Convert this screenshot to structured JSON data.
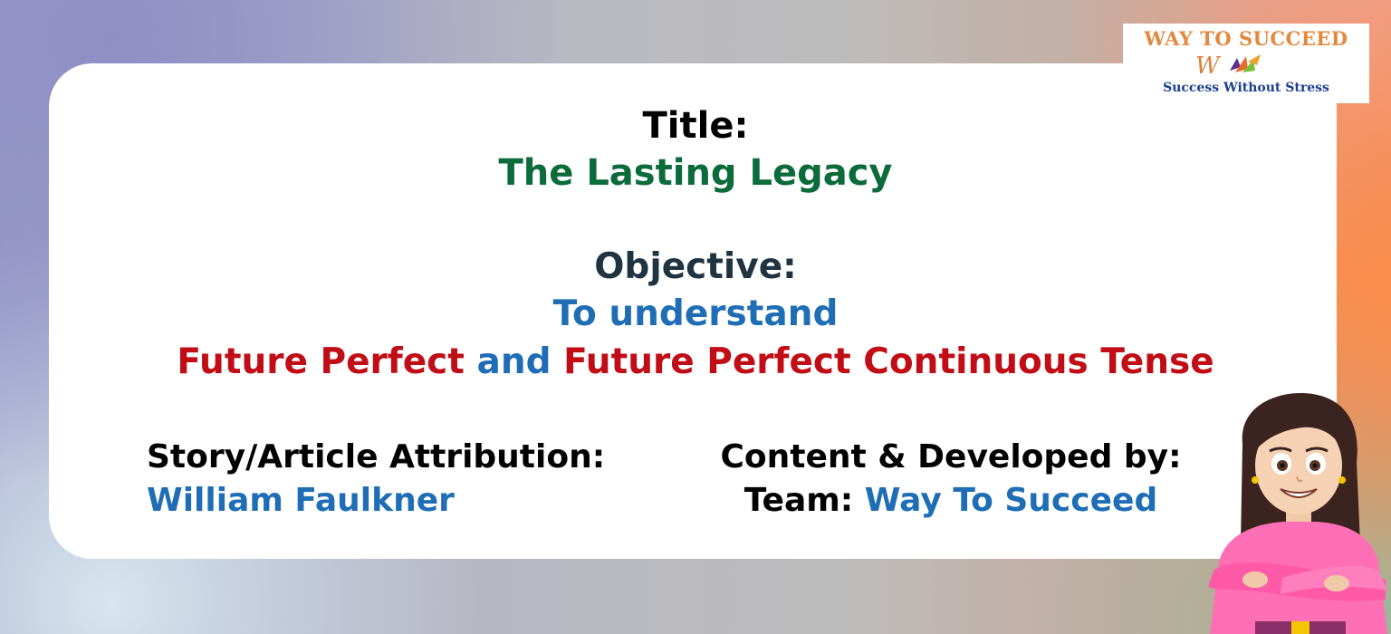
{
  "title": {
    "label": "Title:",
    "value": "The Lasting Legacy"
  },
  "objective": {
    "label": "Objective:",
    "value": "To understand",
    "tense_part1": "Future Perfect",
    "tense_and": " and ",
    "tense_part2": "Future Perfect Continuous Tense"
  },
  "attribution": {
    "label": "Story/Article Attribution:",
    "value": "William Faulkner"
  },
  "developed": {
    "label": "Content & Developed by:",
    "team_prefix": "Team: ",
    "team_name": "Way To Succeed"
  },
  "logo": {
    "top_text": "WAY TO SUCCEED",
    "bottom_text": "Success Without Stress",
    "mark_letter": "W"
  },
  "icons": {
    "logo_mark": "logo-arrow-mark-icon",
    "character": "girl-arms-crossed-illustration"
  },
  "colors": {
    "green_title": "#0b6b3a",
    "blue_accent": "#1f6eb5",
    "red_accent": "#c00d16",
    "logo_orange": "#e3893d",
    "logo_navy": "#1b3f8f"
  }
}
